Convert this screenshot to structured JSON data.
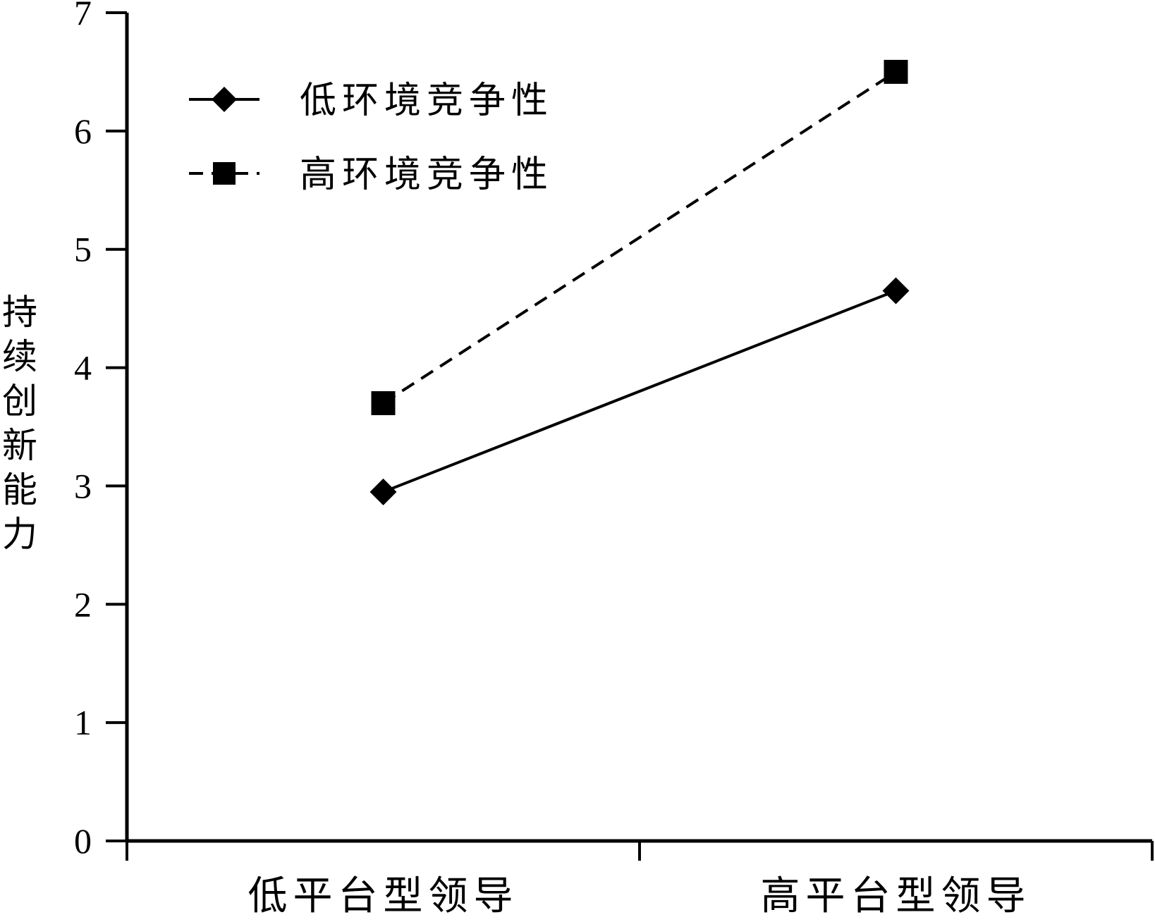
{
  "chart_data": {
    "type": "line",
    "categories": [
      "低平台型领导",
      "高平台型领导"
    ],
    "series": [
      {
        "name": "低环境竞争性",
        "values": [
          2.95,
          4.65
        ],
        "marker": "diamond",
        "line_style": "solid",
        "color": "#000000"
      },
      {
        "name": "高环境竞争性",
        "values": [
          3.7,
          6.5
        ],
        "marker": "square",
        "line_style": "dashed",
        "color": "#000000"
      }
    ],
    "ylabel": "持续创新能力",
    "xlabel": "",
    "ylim": [
      0,
      7
    ],
    "yticks": [
      "0",
      "1",
      "2",
      "3",
      "4",
      "5",
      "6",
      "7"
    ],
    "grid": false,
    "legend_position": "top-left"
  }
}
